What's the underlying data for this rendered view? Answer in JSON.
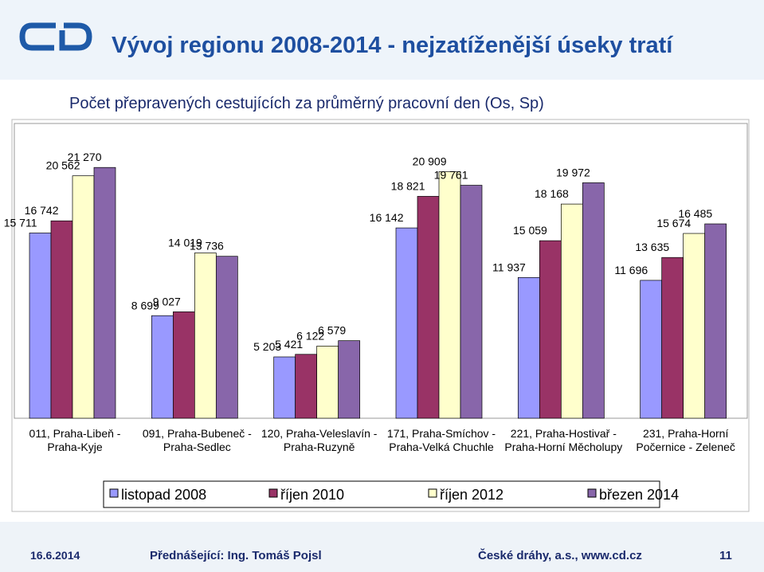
{
  "slide": {
    "title": "Vývoj regionu 2008-2014 - nejzatíženější úseky tratí",
    "footer_date": "16.6.2014",
    "footer_presenter": "Přednášející: Ing. Tomáš Pojsl",
    "footer_company": "České dráhy, a.s., www.cd.cz",
    "page_number": "11"
  },
  "chart_data": {
    "type": "bar",
    "title": "Počet přepravených cestujících za průměrný pracovní den (Os, Sp)",
    "categories": [
      "011, Praha-Libeň - Praha-Kyje",
      "091, Praha-Bubeneč - Praha-Sedlec",
      "120, Praha-Veleslavín - Praha-Ruzyně",
      "171, Praha-Smíchov - Praha-Velká Chuchle",
      "221, Praha-Hostivař - Praha-Horní Měcholupy",
      "231, Praha-Horní Počernice - Zeleneč"
    ],
    "ylim": [
      0,
      25000
    ],
    "series": [
      {
        "name": "listopad 2008",
        "color": "#9999ff",
        "values": [
          15711,
          8699,
          5203,
          16142,
          11937,
          11696
        ],
        "value_labels": [
          "15 711",
          "8 699",
          "5 203",
          "16 142",
          "11 937",
          "11 696"
        ]
      },
      {
        "name": "říjen 2010",
        "color": "#993366",
        "values": [
          16742,
          9027,
          5421,
          18821,
          15059,
          13635
        ],
        "value_labels": [
          "16 742",
          "9 027",
          "5 421",
          "18 821",
          "15 059",
          "13 635"
        ]
      },
      {
        "name": "říjen 2012",
        "color": "#ffffcc",
        "values": [
          20562,
          14019,
          6122,
          20909,
          18168,
          15674
        ],
        "value_labels": [
          "20 562",
          "14 019",
          "6 122",
          "20 909",
          "18 168",
          "15 674"
        ]
      },
      {
        "name": "březen 2014",
        "color": "#8866aa",
        "values": [
          21270,
          13736,
          6579,
          19761,
          19972,
          16485
        ],
        "value_labels": [
          "21 270",
          "13 736",
          "6 579",
          "19 761",
          "19 972",
          "16 485"
        ]
      }
    ]
  }
}
